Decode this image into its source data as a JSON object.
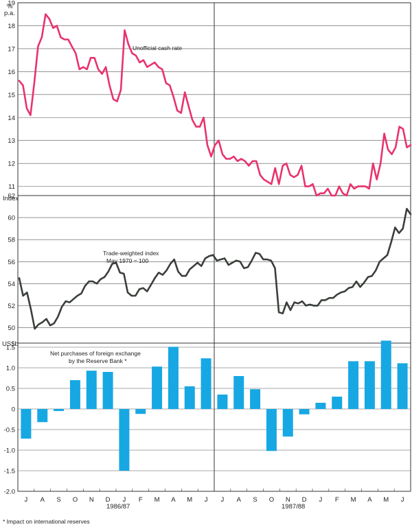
{
  "months": [
    "J",
    "A",
    "S",
    "O",
    "N",
    "D",
    "J",
    "F",
    "M",
    "A",
    "M",
    "J",
    "J",
    "A",
    "S",
    "O",
    "N",
    "D",
    "J",
    "F",
    "M",
    "A",
    "M",
    "J"
  ],
  "year_labels": [
    "1986/87",
    "1987/88"
  ],
  "footnote": "* Impact on international reserves",
  "chart_data": [
    {
      "type": "line",
      "unit_label_top": "%",
      "unit_label": "p.a.",
      "ylim": [
        10.6,
        19
      ],
      "yticks": [
        "11",
        "12",
        "13",
        "14",
        "15",
        "16",
        "17",
        "18",
        "19"
      ],
      "annotation": "Unofficial cash rate",
      "color": "#e8336d",
      "series": [
        {
          "values": [
            15.6,
            15.4,
            14.4,
            14.1,
            15.5,
            17.1,
            17.5,
            18.5,
            18.3,
            17.9,
            18.0,
            17.5,
            17.4,
            17.4,
            17.1,
            16.8,
            16.1,
            16.2,
            16.1,
            16.6,
            16.6,
            16.1,
            15.9,
            16.2,
            15.4,
            14.8,
            14.7,
            15.2,
            17.8,
            17.2,
            16.8,
            16.7,
            16.4,
            16.5,
            16.2,
            16.3,
            16.4,
            16.2,
            16.1,
            15.5,
            15.4,
            14.9,
            14.3,
            14.2,
            15.1,
            14.5,
            13.9,
            13.6,
            13.6,
            14.0,
            12.8,
            12.3,
            12.8,
            13.0,
            12.4,
            12.2,
            12.2,
            12.3,
            12.1,
            12.2,
            12.1,
            11.9,
            12.1,
            12.1,
            11.5,
            11.3,
            11.2,
            11.1,
            11.8,
            11.1,
            11.9,
            12.0,
            11.5,
            11.4,
            11.5,
            11.9,
            11.0,
            11.0,
            11.1,
            10.6,
            10.7,
            10.7,
            10.9,
            10.6,
            10.6,
            11.0,
            10.7,
            10.6,
            11.1,
            10.9,
            11.0,
            11.0,
            11.0,
            10.9,
            12.0,
            11.3,
            12.0,
            13.3,
            12.6,
            12.4,
            12.7,
            13.6,
            13.5,
            12.7,
            12.8
          ]
        }
      ]
    },
    {
      "type": "line",
      "unit_label": "Index",
      "ylim": [
        48.6,
        62
      ],
      "yticks": [
        "50",
        "52",
        "54",
        "56",
        "58",
        "60",
        "62"
      ],
      "annotation": "Trade-weighted index",
      "annotation2": "May 1970 = 100",
      "color": "#3a3f3a",
      "series": [
        {
          "values": [
            54.5,
            52.9,
            53.2,
            51.7,
            49.9,
            50.3,
            50.5,
            50.8,
            50.2,
            50.4,
            51.0,
            51.9,
            52.4,
            52.3,
            52.6,
            52.9,
            53.1,
            53.8,
            54.2,
            54.2,
            54.0,
            54.4,
            54.6,
            55.1,
            55.8,
            55.9,
            55.0,
            54.9,
            53.2,
            52.9,
            52.9,
            53.5,
            53.6,
            53.3,
            53.9,
            54.5,
            55.0,
            54.8,
            55.2,
            55.8,
            56.2,
            55.1,
            54.7,
            54.7,
            55.3,
            55.6,
            55.9,
            55.6,
            56.3,
            56.5,
            56.6,
            56.1,
            56.2,
            56.3,
            55.7,
            55.9,
            56.1,
            56.0,
            55.4,
            55.5,
            56.1,
            56.8,
            56.7,
            56.2,
            56.2,
            56.1,
            55.4,
            51.4,
            51.3,
            52.3,
            51.6,
            52.3,
            52.2,
            52.4,
            52.0,
            52.1,
            52.0,
            52.0,
            52.5,
            52.5,
            52.7,
            52.7,
            53.0,
            53.2,
            53.3,
            53.6,
            53.7,
            54.2,
            53.7,
            54.1,
            54.6,
            54.7,
            55.2,
            56.0,
            56.3,
            56.6,
            57.8,
            59.1,
            58.6,
            59.0,
            60.8,
            60.3
          ]
        }
      ]
    },
    {
      "type": "bar",
      "unit_label": "US$b",
      "annotation": "Net purchases of foreign exchange",
      "annotation2": "by the Reserve Bank *",
      "ylim": [
        -2.0,
        1.6
      ],
      "yticks": [
        "1.5",
        "1.0",
        "0.5",
        "0",
        "-0.5",
        "-1.0",
        "-1.5",
        "-2.0"
      ],
      "color": "#17a8e3",
      "values": [
        -0.72,
        -0.32,
        -0.05,
        0.7,
        0.93,
        0.9,
        -1.5,
        -0.12,
        1.03,
        1.51,
        0.55,
        1.23,
        0.35,
        0.8,
        0.48,
        -1.02,
        -0.67,
        -0.13,
        0.15,
        0.3,
        1.16,
        1.16,
        1.66,
        1.11
      ]
    }
  ]
}
